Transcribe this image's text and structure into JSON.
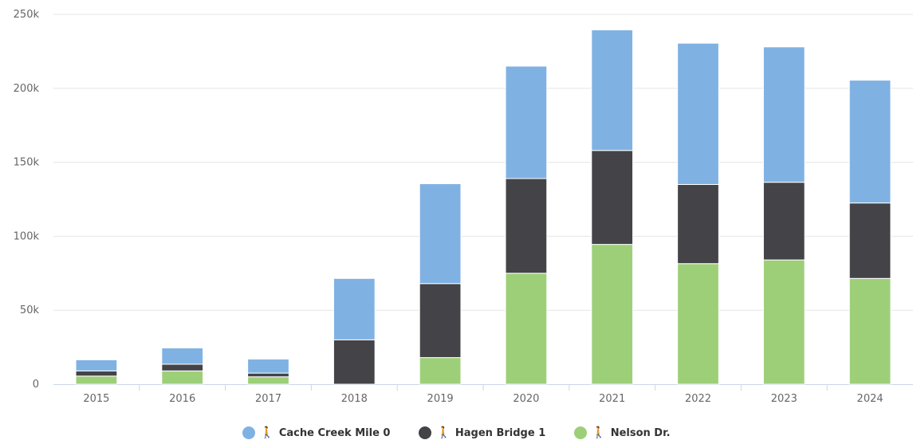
{
  "chart_data": {
    "type": "bar",
    "stacked": true,
    "categories": [
      "2015",
      "2016",
      "2017",
      "2018",
      "2019",
      "2020",
      "2021",
      "2022",
      "2023",
      "2024"
    ],
    "series": [
      {
        "name": "Nelson Dr.",
        "color": "#9dcf78",
        "values": [
          5500,
          9000,
          5000,
          0,
          18000,
          75000,
          94500,
          81500,
          84000,
          71500
        ]
      },
      {
        "name": "Hagen Bridge 1",
        "color": "#434348",
        "values": [
          3500,
          4500,
          2500,
          30000,
          50000,
          64000,
          63500,
          53500,
          52500,
          51000
        ]
      },
      {
        "name": "Cache Creek Mile 0",
        "color": "#7fb2e3",
        "values": [
          7500,
          11000,
          9500,
          41500,
          67500,
          76000,
          81500,
          95500,
          91500,
          83000
        ]
      }
    ],
    "ylim": [
      0,
      250000
    ],
    "yticks": [
      {
        "value": 0,
        "label": "0"
      },
      {
        "value": 50000,
        "label": "50k"
      },
      {
        "value": 100000,
        "label": "100k"
      },
      {
        "value": 150000,
        "label": "150k"
      },
      {
        "value": 200000,
        "label": "200k"
      },
      {
        "value": 250000,
        "label": "250k"
      }
    ],
    "grid": true,
    "legend_position": "bottom-center",
    "legend_icon": "pedestrian-icon",
    "legend": [
      {
        "label": "Cache Creek Mile 0",
        "color": "#7fb2e3"
      },
      {
        "label": "Hagen Bridge 1",
        "color": "#434348"
      },
      {
        "label": "Nelson Dr.",
        "color": "#9dcf78"
      }
    ]
  }
}
